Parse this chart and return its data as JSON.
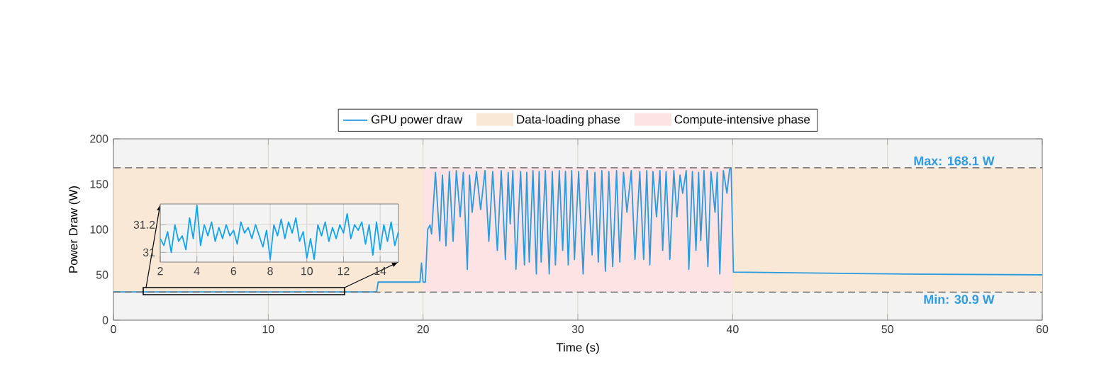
{
  "chart_data": [
    {
      "type": "line",
      "xlabel": "Time (s)",
      "ylabel": "Power Draw (W)",
      "xlim": [
        0,
        60
      ],
      "ylim": [
        0,
        200
      ],
      "xticks": [
        0,
        10,
        20,
        30,
        40,
        50,
        60
      ],
      "yticks": [
        0,
        50,
        100,
        150,
        200
      ],
      "grid": true,
      "legend": "top",
      "series": [
        {
          "name": "GPU power draw",
          "color": "#2b9be0",
          "x": [
            0,
            5,
            10,
            15,
            17,
            17.1,
            19.8,
            19.9,
            20.0,
            20.15,
            20.3,
            20.45,
            20.55,
            20.8,
            21.08,
            21.25,
            21.48,
            21.7,
            21.94,
            22.15,
            22.4,
            22.6,
            22.86,
            23.0,
            23.17,
            23.45,
            23.72,
            24.0,
            24.25,
            24.5,
            24.8,
            25.05,
            25.32,
            25.5,
            25.63,
            25.8,
            26.0,
            26.3,
            26.55,
            26.7,
            26.86,
            27.1,
            27.32,
            27.5,
            27.63,
            27.9,
            28.15,
            28.35,
            28.55,
            28.8,
            29.02,
            29.2,
            29.38,
            29.6,
            29.78,
            30.05,
            30.34,
            30.6,
            30.92,
            31.1,
            31.32,
            31.55,
            31.78,
            32.0,
            32.25,
            32.5,
            32.71,
            32.95,
            33.17,
            33.45,
            33.69,
            34.0,
            34.25,
            34.45,
            34.65,
            34.85,
            35.08,
            35.3,
            35.48,
            35.7,
            35.94,
            36.2,
            36.4,
            36.6,
            36.77,
            37.0,
            37.17,
            37.4,
            37.63,
            37.8,
            37.94,
            38.15,
            38.4,
            38.6,
            38.86,
            39.0,
            39.17,
            39.4,
            39.63,
            39.8,
            39.9,
            40.05,
            45,
            50,
            55,
            60
          ],
          "values": [
            31.1,
            31.1,
            31.1,
            31.1,
            31.1,
            42,
            42,
            63,
            42,
            42,
            100,
            105,
            95,
            163,
            87.5,
            160,
            82,
            164,
            87,
            165,
            114,
            163,
            56,
            160,
            119,
            164,
            122,
            165,
            87,
            164,
            77,
            165,
            67,
            163,
            106,
            165,
            56,
            164,
            61,
            163,
            64,
            165,
            51,
            164,
            64,
            165,
            51,
            164,
            61,
            165,
            77,
            164,
            61,
            165,
            67,
            164,
            51,
            165,
            72,
            163,
            64,
            165,
            54,
            164,
            59,
            165,
            64,
            163,
            119,
            165,
            67,
            164,
            67,
            165,
            61,
            164,
            114,
            165,
            77,
            164,
            67,
            165,
            114,
            160,
            140,
            165,
            56,
            164,
            77,
            163,
            88,
            165,
            59,
            164,
            119,
            163,
            51,
            165,
            140,
            166,
            168.1,
            53,
            52,
            51,
            50.5,
            50
          ]
        }
      ],
      "ref_lines": [
        {
          "axis": "y",
          "value": 168.1,
          "label": "Max: 168.1 W",
          "color": "#595959",
          "line_style": "dashed"
        },
        {
          "axis": "y",
          "value": 30.9,
          "label": "Min: 30.9 W",
          "color": "#595959",
          "line_style": "dashed"
        }
      ],
      "bands": [
        {
          "axis": "x",
          "from": 0,
          "to": 20,
          "label": "Data-loading phase",
          "color": "#fae8d6"
        },
        {
          "axis": "x",
          "from": 20,
          "to": 40,
          "label": "Compute-intensive phase",
          "color": "#fde3e3"
        },
        {
          "axis": "x",
          "from": 40,
          "to": 60,
          "color": "#fae8d6"
        }
      ]
    },
    {
      "type": "line",
      "xlim": [
        2,
        15
      ],
      "ylim": [
        30.93,
        31.35
      ],
      "xticks": [
        2,
        4,
        6,
        8,
        10,
        12,
        14
      ],
      "yticks": [
        31,
        31.2
      ],
      "grid": true,
      "series": [
        {
          "color": "#12a4f0",
          "x": [
            2.0,
            2.2,
            2.4,
            2.6,
            2.8,
            3.0,
            3.2,
            3.4,
            3.6,
            3.8,
            4.0,
            4.2,
            4.4,
            4.6,
            4.8,
            5.0,
            5.2,
            5.4,
            5.6,
            5.8,
            6.0,
            6.2,
            6.4,
            6.6,
            6.8,
            7.0,
            7.2,
            7.4,
            7.6,
            7.8,
            8.0,
            8.2,
            8.4,
            8.6,
            8.8,
            9.0,
            9.2,
            9.4,
            9.6,
            9.8,
            10.0,
            10.2,
            10.4,
            10.6,
            10.8,
            11.0,
            11.2,
            11.4,
            11.6,
            11.8,
            12.0,
            12.2,
            12.4,
            12.6,
            12.8,
            13.0,
            13.2,
            13.4,
            13.6,
            13.8,
            14.0,
            14.2,
            14.4,
            14.6,
            14.8,
            15.0
          ],
          "values": [
            31.1,
            31.05,
            31.15,
            31.0,
            31.2,
            31.08,
            31.12,
            31.02,
            31.25,
            31.1,
            31.34,
            31.05,
            31.2,
            31.12,
            31.22,
            31.08,
            31.18,
            31.1,
            31.2,
            31.12,
            31.16,
            31.06,
            31.22,
            31.14,
            31.18,
            31.1,
            31.2,
            31.12,
            31.04,
            31.16,
            30.95,
            31.2,
            31.12,
            31.24,
            31.1,
            31.22,
            31.14,
            31.25,
            31.08,
            31.15,
            30.96,
            31.1,
            30.95,
            31.2,
            31.12,
            31.22,
            31.08,
            31.18,
            31.1,
            31.2,
            31.14,
            31.28,
            31.1,
            31.2,
            31.16,
            31.22,
            31.06,
            31.2,
            30.98,
            31.22,
            31.02,
            31.2,
            31.08,
            31.22,
            31.05,
            31.15
          ]
        }
      ]
    }
  ]
}
